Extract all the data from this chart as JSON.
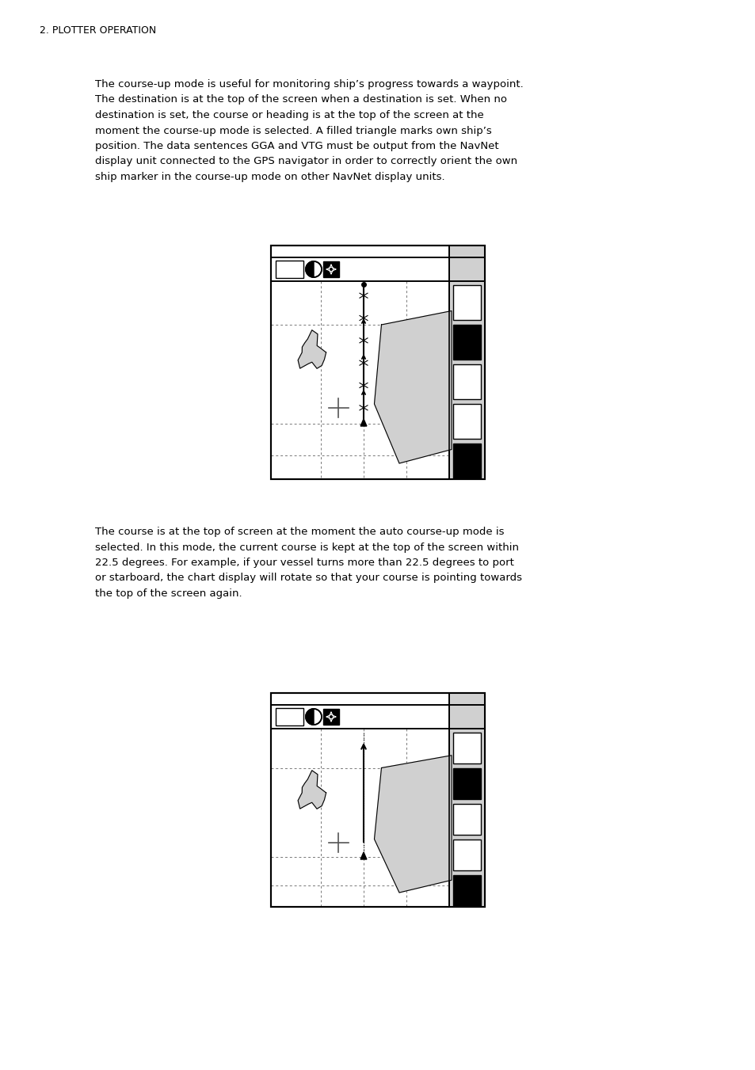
{
  "page_header": "2. PLOTTER OPERATION",
  "para1_lines": [
    "The course-up mode is useful for monitoring ship’s progress towards a waypoint.",
    "The destination is at the top of the screen when a destination is set. When no",
    "destination is set, the course or heading is at the top of the screen at the",
    "moment the course-up mode is selected. A filled triangle marks own ship’s",
    "position. The data sentences GGA and VTG must be output from the NavNet",
    "display unit connected to the GPS navigator in order to correctly orient the own",
    "ship marker in the course-up mode on other NavNet display units."
  ],
  "para2_lines": [
    "The course is at the top of screen at the moment the auto course-up mode is",
    "selected. In this mode, the current course is kept at the top of the screen within",
    "22.5 degrees. For example, if your vessel turns more than 22.5 degrees to port",
    "or starboard, the chart display will rotate so that your course is pointing towards",
    "the top of the screen again."
  ],
  "bg_color": "#ffffff",
  "text_color": "#000000",
  "dashed_color": "#777777",
  "island_color": "#d0d0d0",
  "sidebar_gray": "#d0d0d0"
}
